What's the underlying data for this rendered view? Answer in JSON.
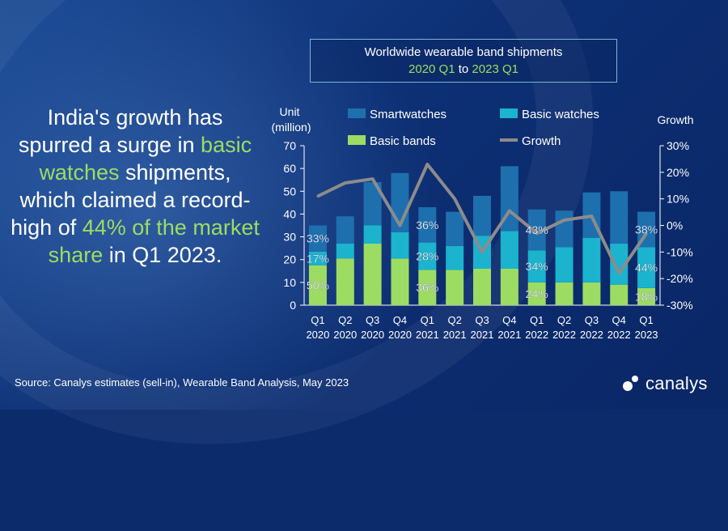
{
  "headline": {
    "p1": "India's growth has spurred a surge in ",
    "p2": "basic watches",
    "p3": " shipments, which claimed a record-high of ",
    "p4": "44% of the market share",
    "p5": " in Q1 2023."
  },
  "title_box": {
    "line1": "Worldwide wearable band shipments",
    "from": "2020 Q1",
    "to_word": "to",
    "to": "2023 Q1"
  },
  "source": "Source:  Canalys estimates (sell-in), Wearable Band Analysis, May 2023",
  "logo_text": "canalys",
  "colors": {
    "smartwatches": "#1e6fad",
    "basic_watches": "#1bb3cd",
    "basic_bands": "#9ddc62",
    "growth": "#8c8c8c",
    "accent_green": "#9ddc62"
  },
  "chart_data": {
    "type": "bar",
    "stacked": true,
    "title": "Worldwide wearable band shipments 2020 Q1 to 2023 Q1",
    "ylabel": "Unit (million)",
    "y2label": "Growth",
    "ylim": [
      0,
      70
    ],
    "yticks": [
      "0",
      "10",
      "20",
      "30",
      "40",
      "50",
      "60",
      "70"
    ],
    "y2lim": [
      -30,
      30
    ],
    "y2ticks": [
      "-30%",
      "-20%",
      "-10%",
      "0%",
      "10%",
      "20%",
      "30%"
    ],
    "categories": [
      [
        "Q1",
        "2020"
      ],
      [
        "Q2",
        "2020"
      ],
      [
        "Q3",
        "2020"
      ],
      [
        "Q4",
        "2020"
      ],
      [
        "Q1",
        "2021"
      ],
      [
        "Q2",
        "2021"
      ],
      [
        "Q3",
        "2021"
      ],
      [
        "Q4",
        "2021"
      ],
      [
        "Q1",
        "2022"
      ],
      [
        "Q2",
        "2022"
      ],
      [
        "Q3",
        "2022"
      ],
      [
        "Q4",
        "2022"
      ],
      [
        "Q1",
        "2023"
      ]
    ],
    "series": [
      {
        "name": "Basic bands",
        "key": "basic_bands",
        "values": [
          17.5,
          20.5,
          27,
          20.5,
          15.5,
          15.5,
          16,
          16,
          10,
          10,
          10,
          9,
          7.5
        ]
      },
      {
        "name": "Basic watches",
        "key": "basic_watches",
        "values": [
          6,
          6.5,
          8,
          11.5,
          12,
          10.5,
          14.5,
          16.5,
          14,
          15.5,
          19.5,
          18,
          18
        ]
      },
      {
        "name": "Smartwatches",
        "key": "smartwatches",
        "values": [
          11.5,
          12,
          19,
          26,
          15.5,
          15,
          17.5,
          28.5,
          18,
          16,
          20,
          23,
          15.5
        ]
      }
    ],
    "growth": {
      "name": "Growth",
      "values": [
        11,
        16,
        17.5,
        0,
        23,
        10,
        -10,
        5.5,
        -3,
        2,
        3.5,
        -18,
        -3
      ]
    },
    "legend": [
      "Smartwatches",
      "Basic watches",
      "Basic bands",
      "Growth"
    ],
    "annotations": [
      {
        "index": 0,
        "series": "smartwatches",
        "text": "33%"
      },
      {
        "index": 0,
        "series": "basic_watches",
        "text": "17%"
      },
      {
        "index": 0,
        "series": "basic_bands",
        "text": "50%"
      },
      {
        "index": 4,
        "series": "smartwatches",
        "text": "36%"
      },
      {
        "index": 4,
        "series": "basic_watches",
        "text": "28%"
      },
      {
        "index": 4,
        "series": "basic_bands",
        "text": "36%"
      },
      {
        "index": 8,
        "series": "smartwatches",
        "text": "43%"
      },
      {
        "index": 8,
        "series": "basic_watches",
        "text": "34%"
      },
      {
        "index": 8,
        "series": "basic_bands",
        "text": "24%"
      },
      {
        "index": 12,
        "series": "smartwatches",
        "text": "38%"
      },
      {
        "index": 12,
        "series": "basic_watches",
        "text": "44%"
      },
      {
        "index": 12,
        "series": "basic_bands",
        "text": "18%"
      }
    ]
  }
}
